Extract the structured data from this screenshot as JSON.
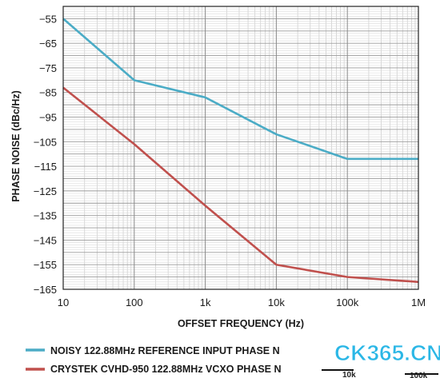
{
  "chart_data": {
    "type": "line",
    "xscale": "log",
    "xlim": [
      10,
      1000000
    ],
    "ylim": [
      -165,
      -50
    ],
    "xlabel": "OFFSET FREQUENCY (Hz)",
    "ylabel": "PHASE NOISE (dBc/Hz)",
    "x_ticks": [
      {
        "value": 10,
        "label": "10"
      },
      {
        "value": 100,
        "label": "100"
      },
      {
        "value": 1000,
        "label": "1k"
      },
      {
        "value": 10000,
        "label": "10k"
      },
      {
        "value": 100000,
        "label": "100k"
      },
      {
        "value": 1000000,
        "label": "1M"
      }
    ],
    "y_ticks": [
      -55,
      -65,
      -75,
      -85,
      -95,
      -105,
      -115,
      -125,
      -135,
      -145,
      -155,
      -165
    ],
    "grid": true,
    "legend_position": "bottom",
    "series": [
      {
        "name": "NOISY 122.88MHz REFERENCE INPUT PHASE N",
        "color": "#4bacc6",
        "x": [
          10,
          100,
          1000,
          10000,
          100000,
          1000000
        ],
        "y": [
          -55,
          -80,
          -87,
          -102,
          -112,
          -112
        ]
      },
      {
        "name": "CRYSTEK CVHD-950 122.88MHz VCXO PHASE N",
        "color": "#c0504d",
        "x": [
          10,
          100,
          1000,
          10000,
          100000,
          1000000
        ],
        "y": [
          -83,
          -106,
          -131,
          -155,
          -160,
          -162
        ]
      }
    ]
  },
  "watermark": {
    "text": "CK365.CN",
    "fragment_left": "10k",
    "fragment_right": "100k"
  }
}
